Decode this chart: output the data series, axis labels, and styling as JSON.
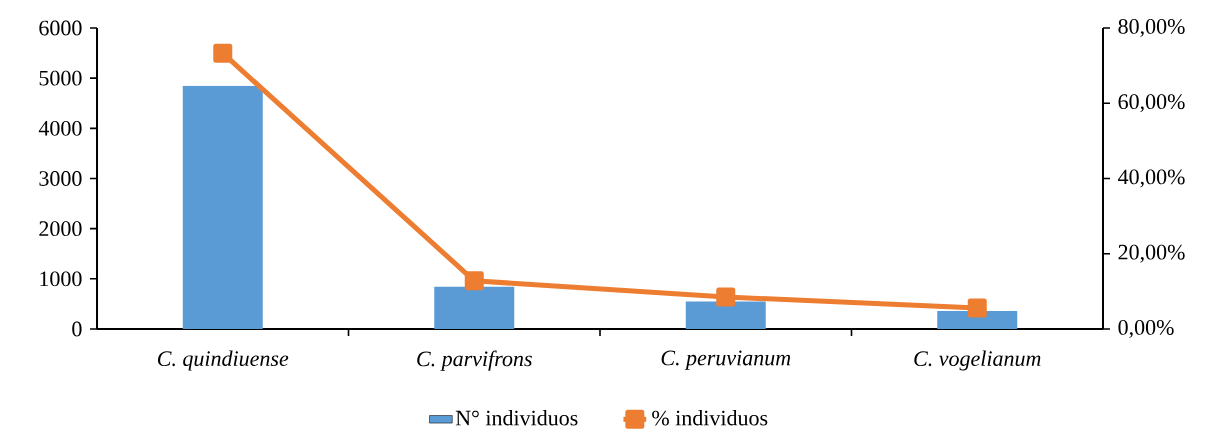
{
  "chart_data": {
    "type": "bar",
    "categories": [
      "C. quindiuense",
      "C. parvifrons",
      "C. peruvianum",
      "C. vogelianum"
    ],
    "series": [
      {
        "name": "N° individuos",
        "color": "#5b9bd5",
        "values": [
          4850,
          840,
          550,
          360
        ]
      },
      {
        "name": "% individuos",
        "type": "line",
        "axis": "y2",
        "color": "#ed7d31",
        "values": [
          73.3,
          12.8,
          8.5,
          5.6
        ]
      }
    ],
    "ylim": [
      0,
      6000
    ],
    "yticks": [
      0,
      1000,
      2000,
      3000,
      4000,
      5000,
      6000
    ],
    "y2lim": [
      0,
      80
    ],
    "y2ticks": [
      {
        "value": 0,
        "label": "0,00%"
      },
      {
        "value": 20,
        "label": "20,00%"
      },
      {
        "value": 40,
        "label": "40,00%"
      },
      {
        "value": 60,
        "label": "60,00%"
      },
      {
        "value": 80,
        "label": "80,00%"
      }
    ],
    "legend": "bottom",
    "marker": "square",
    "grid": false
  }
}
